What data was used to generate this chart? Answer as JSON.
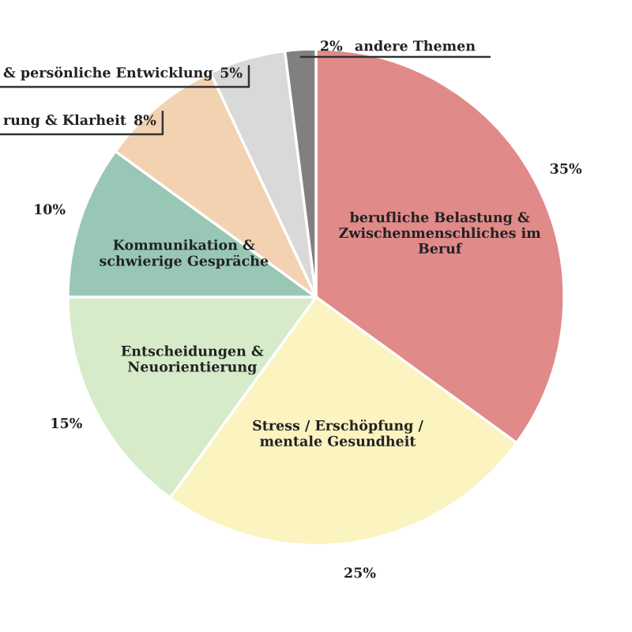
{
  "chart_data": {
    "type": "pie",
    "categories": [
      "berufliche Belastung &\nZwischenmenschliches im\nBeruf",
      "Stress / Erschöpfung /\nmentale Gesundheit",
      "Entscheidungen &\nNeuorientierung",
      "Kommunikation &\nschwierige Gespräche",
      "rung & Klarheit",
      "& persönliche Entwicklung",
      "andere Themen"
    ],
    "values": [
      35,
      25,
      15,
      10,
      8,
      5,
      2
    ],
    "colors": [
      "#e08a8a",
      "#fbf3c0",
      "#d6ebc9",
      "#99c7b6",
      "#f3d2b2",
      "#d9d9d9",
      "#808080"
    ],
    "value_labels": [
      "35%",
      "25%",
      "15%",
      "10%",
      "8%",
      "5%",
      "2%"
    ],
    "legend": false
  }
}
